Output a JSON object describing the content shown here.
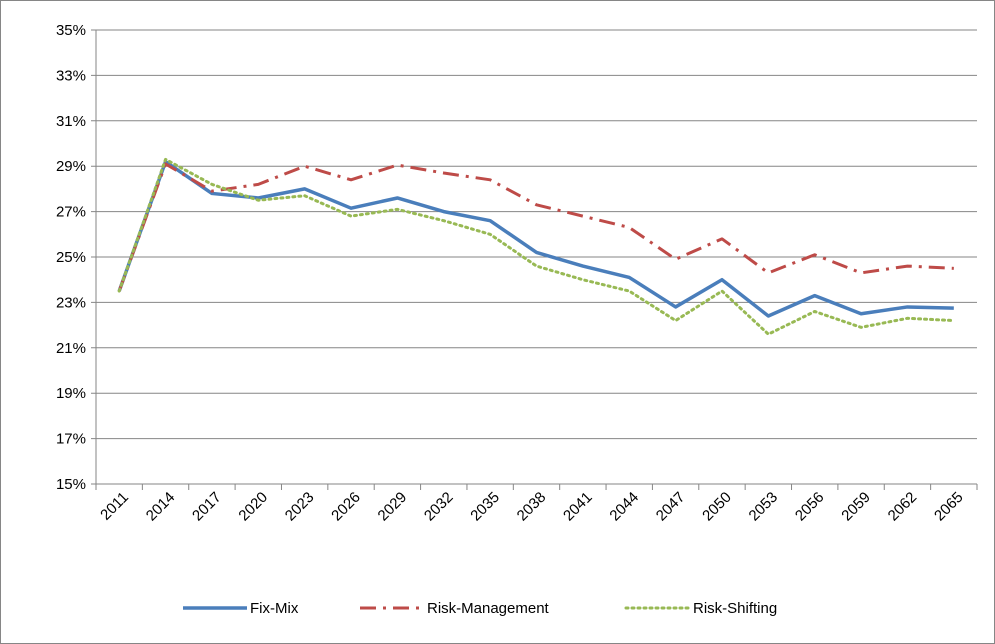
{
  "chart_data": {
    "type": "line",
    "categories": [
      "2011",
      "2014",
      "2017",
      "2020",
      "2023",
      "2026",
      "2029",
      "2032",
      "2035",
      "2038",
      "2041",
      "2044",
      "2047",
      "2050",
      "2053",
      "2056",
      "2059",
      "2062",
      "2065"
    ],
    "series": [
      {
        "name": "Fix-Mix",
        "color": "#4a7ebb",
        "values": [
          23.5,
          29.2,
          27.8,
          27.6,
          28.0,
          27.15,
          27.6,
          27.0,
          26.6,
          25.2,
          24.6,
          24.1,
          22.8,
          24.0,
          22.4,
          23.3,
          22.5,
          22.8,
          22.75
        ]
      },
      {
        "name": "Risk-Management",
        "color": "#be4b48",
        "values": [
          23.5,
          29.1,
          27.9,
          28.2,
          29.0,
          28.4,
          29.05,
          28.7,
          28.4,
          27.3,
          26.8,
          26.3,
          24.9,
          25.8,
          24.3,
          25.1,
          24.3,
          24.6,
          24.5
        ]
      },
      {
        "name": "Risk-Shifting",
        "color": "#98b954",
        "values": [
          23.5,
          29.3,
          28.2,
          27.5,
          27.7,
          26.8,
          27.1,
          26.6,
          26.0,
          24.6,
          24.0,
          23.5,
          22.2,
          23.5,
          21.6,
          22.6,
          21.9,
          22.3,
          22.2
        ]
      }
    ],
    "ylim": [
      15,
      35
    ],
    "yticks": [
      {
        "value": 15,
        "label": "15%"
      },
      {
        "value": 17,
        "label": "17%"
      },
      {
        "value": 19,
        "label": "19%"
      },
      {
        "value": 21,
        "label": "21%"
      },
      {
        "value": 23,
        "label": "23%"
      },
      {
        "value": 25,
        "label": "25%"
      },
      {
        "value": 27,
        "label": "27%"
      },
      {
        "value": 29,
        "label": "29%"
      },
      {
        "value": 31,
        "label": "31%"
      },
      {
        "value": 33,
        "label": "33%"
      },
      {
        "value": 35,
        "label": "35%"
      }
    ],
    "grid": true,
    "legend": "bottom"
  }
}
